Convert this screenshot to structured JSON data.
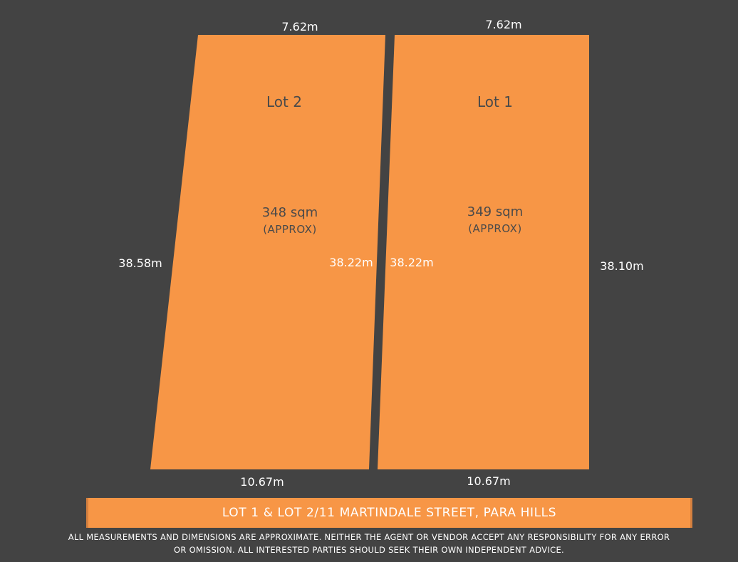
{
  "colors": {
    "background": "#434343",
    "lot": "#f79646",
    "lot_text": "#4a4a4a",
    "dimension_text": "#ffffff"
  },
  "lots": [
    {
      "name": "Lot 2",
      "area": "348 sqm",
      "approx": "(APPROX)",
      "front": "7.62m",
      "rear": "10.67m",
      "left_side": "38.58m",
      "right_side": "38.22m"
    },
    {
      "name": "Lot 1",
      "area": "349 sqm",
      "approx": "(APPROX)",
      "front": "7.62m",
      "rear": "10.67m",
      "left_side": "38.22m",
      "right_side": "38.10m"
    }
  ],
  "banner": {
    "title": "LOT 1 & LOT 2/11 MARTINDALE STREET, PARA HILLS"
  },
  "disclaimer": {
    "line1": "ALL MEASUREMENTS AND DIMENSIONS ARE APPROXIMATE. NEITHER THE AGENT OR VENDOR ACCEPT ANY RESPONSIBILITY FOR ANY ERROR",
    "line2": "OR OMISSION. ALL INTERESTED PARTIES SHOULD SEEK THEIR OWN INDEPENDENT ADVICE."
  }
}
